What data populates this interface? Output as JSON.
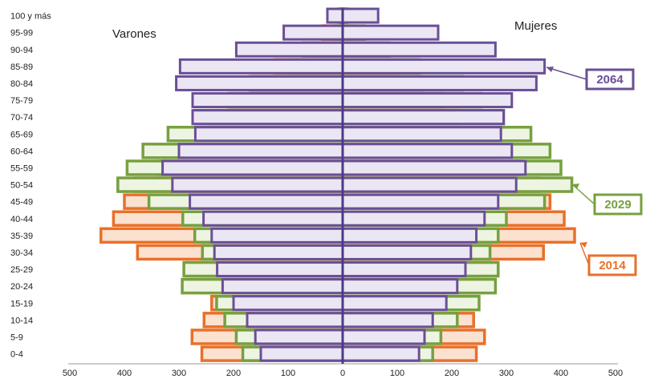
{
  "chart_data": {
    "type": "bar",
    "orientation": "horizontal-pyramid",
    "categories": [
      "0-4",
      "5-9",
      "10-14",
      "15-19",
      "20-24",
      "25-29",
      "30-34",
      "35-39",
      "40-44",
      "45-49",
      "50-54",
      "55-59",
      "60-64",
      "65-69",
      "70-74",
      "75-79",
      "80-84",
      "85-89",
      "90-94",
      "95-99",
      "100 y más"
    ],
    "left_label": "Varones",
    "right_label": "Mujeres",
    "x_ticks": [
      "500",
      "400",
      "300",
      "200",
      "100",
      "0",
      "100",
      "200",
      "300",
      "400",
      "500"
    ],
    "xlim": [
      -500,
      500
    ],
    "series": [
      {
        "name": "2014",
        "color": "#e8702a",
        "fill": "#fbe1cf",
        "men": [
          258,
          276,
          254,
          240,
          262,
          286,
          376,
          443,
          420,
          400,
          380,
          340,
          300,
          270,
          240,
          205,
          170,
          125,
          73,
          37,
          7
        ],
        "women": [
          245,
          260,
          240,
          226,
          250,
          282,
          368,
          425,
          406,
          380,
          360,
          325,
          290,
          250,
          213,
          185,
          145,
          100,
          54,
          20,
          4
        ]
      },
      {
        "name": "2029",
        "color": "#77a03f",
        "fill": "#edf4e2",
        "men": [
          183,
          195,
          216,
          231,
          294,
          291,
          257,
          271,
          293,
          355,
          412,
          395,
          366,
          320,
          270,
          210,
          165,
          95,
          46,
          17,
          3
        ],
        "women": [
          165,
          180,
          210,
          250,
          280,
          285,
          270,
          285,
          300,
          370,
          420,
          400,
          380,
          345,
          295,
          255,
          220,
          140,
          85,
          40,
          8
        ]
      },
      {
        "name": "2064",
        "color": "#6a4f96",
        "fill": "#ebe6f3",
        "men": [
          150,
          160,
          175,
          200,
          220,
          230,
          235,
          240,
          255,
          280,
          312,
          330,
          300,
          270,
          275,
          275,
          305,
          298,
          195,
          108,
          28
        ],
        "women": [
          140,
          150,
          165,
          190,
          210,
          225,
          235,
          245,
          260,
          285,
          318,
          335,
          310,
          290,
          295,
          310,
          355,
          370,
          280,
          175,
          65
        ]
      }
    ]
  }
}
